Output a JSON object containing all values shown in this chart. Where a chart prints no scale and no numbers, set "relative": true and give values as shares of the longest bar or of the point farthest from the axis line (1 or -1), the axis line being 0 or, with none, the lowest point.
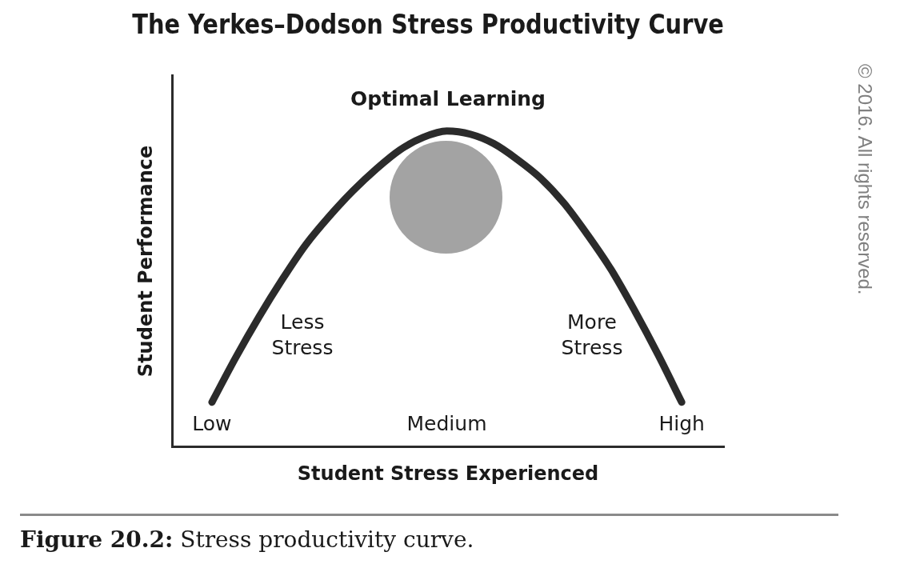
{
  "chart_data": {
    "type": "line",
    "title": "The Yerkes–Dodson Stress Productivity Curve",
    "xlabel": "Student Stress Experienced",
    "ylabel": "Student Performance",
    "categories": [
      "Low",
      null,
      null,
      null,
      null,
      null,
      null,
      null,
      null,
      null,
      "Medium",
      null,
      null,
      null,
      null,
      null,
      null,
      null,
      null,
      null,
      "High"
    ],
    "values": [
      0.14,
      0.28,
      0.41,
      0.53,
      0.64,
      0.73,
      0.81,
      0.88,
      0.94,
      0.98,
      1,
      0.99,
      0.96,
      0.91,
      0.85,
      0.77,
      0.67,
      0.56,
      0.43,
      0.29,
      0.14
    ],
    "color": "#2b2b2b",
    "relative": true,
    "annotations": [
      "Optimal Learning",
      "Less Stress",
      "More Stress",
      "Figure 20.2: Stress productivity curve.",
      "© 2016. All rights reserved."
    ]
  }
}
